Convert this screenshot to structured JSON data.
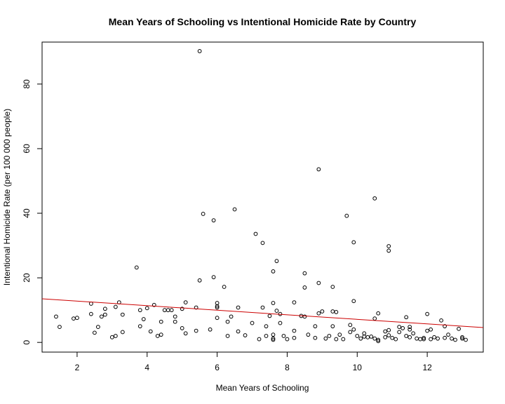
{
  "chart_data": {
    "type": "scatter",
    "title": "Mean Years of Schooling vs Intentional Homicide Rate by Country",
    "xlabel": "Mean Years of Schooling",
    "ylabel": "Intentional Homicide Rate (per 100 000 people)",
    "xlim": [
      1,
      13.6
    ],
    "ylim": [
      -3,
      93
    ],
    "xticks": [
      2,
      4,
      6,
      8,
      10,
      12
    ],
    "yticks": [
      0,
      20,
      40,
      60,
      80
    ],
    "grid": false,
    "legend": "none",
    "point_color": "#000000",
    "fit_line": {
      "color": "#cc0000",
      "x": [
        1.0,
        13.6
      ],
      "y": [
        13.5,
        4.6
      ]
    },
    "points": [
      [
        1.4,
        8.0
      ],
      [
        1.5,
        4.8
      ],
      [
        1.9,
        7.4
      ],
      [
        2.0,
        7.6
      ],
      [
        2.4,
        12.0
      ],
      [
        2.4,
        8.8
      ],
      [
        2.5,
        3.0
      ],
      [
        2.6,
        4.8
      ],
      [
        2.7,
        8.0
      ],
      [
        2.8,
        8.6
      ],
      [
        2.8,
        10.4
      ],
      [
        3.0,
        1.6
      ],
      [
        3.1,
        11.0
      ],
      [
        3.1,
        2.0
      ],
      [
        3.2,
        12.4
      ],
      [
        3.3,
        8.6
      ],
      [
        3.3,
        3.2
      ],
      [
        3.7,
        23.2
      ],
      [
        3.8,
        5.0
      ],
      [
        3.8,
        10.0
      ],
      [
        3.9,
        7.2
      ],
      [
        4.0,
        10.6
      ],
      [
        4.1,
        3.4
      ],
      [
        4.2,
        11.6
      ],
      [
        4.3,
        2.0
      ],
      [
        4.4,
        2.4
      ],
      [
        4.4,
        6.4
      ],
      [
        4.5,
        10.0
      ],
      [
        4.6,
        10.0
      ],
      [
        4.7,
        10.0
      ],
      [
        4.8,
        6.4
      ],
      [
        4.8,
        8.0
      ],
      [
        5.0,
        10.4
      ],
      [
        5.0,
        4.4
      ],
      [
        5.1,
        12.4
      ],
      [
        5.1,
        2.8
      ],
      [
        5.4,
        10.8
      ],
      [
        5.4,
        3.6
      ],
      [
        5.5,
        90.2
      ],
      [
        5.5,
        19.2
      ],
      [
        5.6,
        39.8
      ],
      [
        5.8,
        4.0
      ],
      [
        5.9,
        37.8
      ],
      [
        5.9,
        20.2
      ],
      [
        6.0,
        12.2
      ],
      [
        6.0,
        10.8
      ],
      [
        6.0,
        11.2
      ],
      [
        6.0,
        7.6
      ],
      [
        6.2,
        17.2
      ],
      [
        6.3,
        2.0
      ],
      [
        6.3,
        6.4
      ],
      [
        6.4,
        8.0
      ],
      [
        6.5,
        41.2
      ],
      [
        6.6,
        10.8
      ],
      [
        6.6,
        3.4
      ],
      [
        6.8,
        2.2
      ],
      [
        7.0,
        6.0
      ],
      [
        7.1,
        33.6
      ],
      [
        7.2,
        1.0
      ],
      [
        7.3,
        30.8
      ],
      [
        7.3,
        10.8
      ],
      [
        7.4,
        5.0
      ],
      [
        7.4,
        2.0
      ],
      [
        7.5,
        8.2
      ],
      [
        7.6,
        1.2
      ],
      [
        7.6,
        2.4
      ],
      [
        7.6,
        0.8
      ],
      [
        7.6,
        22.0
      ],
      [
        7.6,
        12.2
      ],
      [
        7.7,
        25.2
      ],
      [
        7.7,
        9.8
      ],
      [
        7.8,
        8.8
      ],
      [
        7.8,
        6.0
      ],
      [
        7.9,
        2.0
      ],
      [
        8.0,
        1.0
      ],
      [
        8.2,
        3.6
      ],
      [
        8.2,
        12.4
      ],
      [
        8.2,
        1.4
      ],
      [
        8.4,
        8.2
      ],
      [
        8.5,
        21.4
      ],
      [
        8.5,
        17.0
      ],
      [
        8.5,
        8.0
      ],
      [
        8.6,
        2.4
      ],
      [
        8.8,
        1.4
      ],
      [
        8.8,
        5.0
      ],
      [
        8.9,
        53.6
      ],
      [
        8.9,
        18.4
      ],
      [
        8.9,
        9.0
      ],
      [
        9.0,
        9.6
      ],
      [
        9.1,
        1.2
      ],
      [
        9.2,
        2.0
      ],
      [
        9.3,
        9.6
      ],
      [
        9.3,
        5.0
      ],
      [
        9.3,
        17.2
      ],
      [
        9.4,
        9.4
      ],
      [
        9.4,
        1.0
      ],
      [
        9.5,
        2.4
      ],
      [
        9.6,
        1.0
      ],
      [
        9.7,
        39.2
      ],
      [
        9.8,
        5.4
      ],
      [
        9.8,
        3.2
      ],
      [
        9.9,
        31.0
      ],
      [
        9.9,
        12.8
      ],
      [
        9.9,
        4.0
      ],
      [
        10.0,
        2.0
      ],
      [
        10.1,
        1.2
      ],
      [
        10.2,
        1.8
      ],
      [
        10.2,
        2.8
      ],
      [
        10.3,
        1.6
      ],
      [
        10.4,
        1.8
      ],
      [
        10.5,
        44.6
      ],
      [
        10.5,
        7.4
      ],
      [
        10.5,
        1.2
      ],
      [
        10.6,
        9.0
      ],
      [
        10.6,
        0.8
      ],
      [
        10.6,
        0.4
      ],
      [
        10.8,
        1.6
      ],
      [
        10.8,
        3.4
      ],
      [
        10.9,
        29.8
      ],
      [
        10.9,
        28.4
      ],
      [
        10.9,
        3.8
      ],
      [
        10.9,
        2.2
      ],
      [
        11.0,
        1.4
      ],
      [
        11.1,
        1.0
      ],
      [
        11.2,
        4.8
      ],
      [
        11.2,
        3.2
      ],
      [
        11.3,
        4.4
      ],
      [
        11.4,
        7.8
      ],
      [
        11.4,
        2.0
      ],
      [
        11.5,
        4.0
      ],
      [
        11.5,
        4.8
      ],
      [
        11.5,
        1.6
      ],
      [
        11.6,
        2.8
      ],
      [
        11.7,
        1.2
      ],
      [
        11.8,
        1.0
      ],
      [
        11.9,
        1.4
      ],
      [
        11.9,
        1.0
      ],
      [
        12.0,
        8.8
      ],
      [
        12.0,
        3.6
      ],
      [
        12.1,
        1.0
      ],
      [
        12.1,
        4.0
      ],
      [
        12.2,
        1.6
      ],
      [
        12.3,
        1.2
      ],
      [
        12.4,
        6.8
      ],
      [
        12.5,
        5.0
      ],
      [
        12.5,
        1.4
      ],
      [
        12.6,
        2.4
      ],
      [
        12.7,
        1.2
      ],
      [
        12.8,
        0.8
      ],
      [
        12.9,
        4.2
      ],
      [
        13.0,
        1.6
      ],
      [
        13.0,
        1.2
      ],
      [
        13.1,
        0.8
      ]
    ]
  }
}
